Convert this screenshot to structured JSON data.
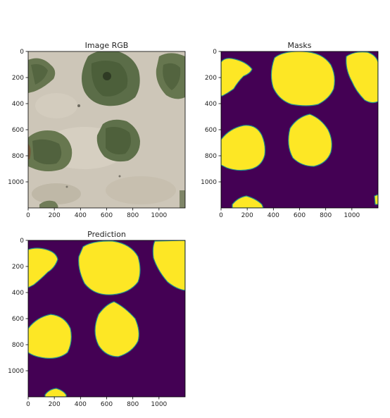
{
  "figure": {
    "panels": [
      {
        "id": "rgb",
        "title": "Image RGB",
        "x_ticks": [
          "0",
          "200",
          "400",
          "600",
          "800",
          "1000"
        ],
        "y_ticks": [
          "0",
          "200",
          "400",
          "600",
          "800",
          "1000"
        ]
      },
      {
        "id": "masks",
        "title": "Masks",
        "x_ticks": [
          "0",
          "200",
          "400",
          "600",
          "800",
          "1000"
        ],
        "y_ticks": [
          "0",
          "200",
          "400",
          "600",
          "800",
          "1000"
        ]
      },
      {
        "id": "prediction",
        "title": "Prediction",
        "x_ticks": [
          "0",
          "200",
          "400",
          "600",
          "800",
          "1000"
        ],
        "y_ticks": [
          "0",
          "200",
          "400",
          "600",
          "800",
          "1000"
        ]
      }
    ]
  },
  "chart_data": [
    {
      "type": "heatmap",
      "title": "Image RGB",
      "xlabel": "",
      "ylabel": "",
      "xlim": [
        0,
        1200
      ],
      "ylim": [
        1200,
        0
      ],
      "x_ticks": [
        0,
        200,
        400,
        600,
        800,
        1000
      ],
      "y_ticks": [
        0,
        200,
        400,
        600,
        800,
        1000
      ],
      "grid": false,
      "background_color": "#cdc6b8",
      "tree_color": "#5c6e48"
    },
    {
      "type": "heatmap",
      "title": "Masks",
      "xlabel": "",
      "ylabel": "",
      "xlim": [
        0,
        1200
      ],
      "ylim": [
        1200,
        0
      ],
      "x_ticks": [
        0,
        200,
        400,
        600,
        800,
        1000
      ],
      "y_ticks": [
        0,
        200,
        400,
        600,
        800,
        1000
      ],
      "grid": false,
      "colormap": "viridis",
      "background_color": "#440154",
      "foreground_color": "#fde725",
      "edge_color": "#21918c"
    },
    {
      "type": "heatmap",
      "title": "Prediction",
      "xlabel": "",
      "ylabel": "",
      "xlim": [
        0,
        1200
      ],
      "ylim": [
        1200,
        0
      ],
      "x_ticks": [
        0,
        200,
        400,
        600,
        800,
        1000
      ],
      "y_ticks": [
        0,
        200,
        400,
        600,
        800,
        1000
      ],
      "grid": false,
      "colormap": "viridis",
      "background_color": "#440154",
      "foreground_color": "#fde725",
      "edge_color": "#21918c"
    }
  ]
}
